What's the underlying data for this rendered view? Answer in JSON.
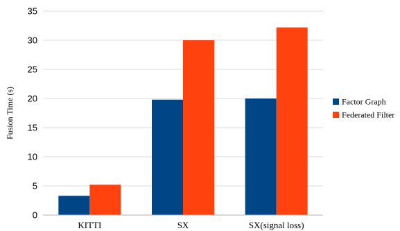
{
  "chart_data": {
    "type": "bar",
    "categories": [
      "KITTI",
      "SX",
      "SX(signal loss)"
    ],
    "series": [
      {
        "name": "Factor Graph",
        "color": "#004586",
        "values": [
          3.3,
          19.8,
          20.0
        ]
      },
      {
        "name": "Federated Filter",
        "color": "#ff420e",
        "values": [
          5.2,
          30.0,
          32.2
        ]
      }
    ],
    "ylabel": "Fusion Time (s)",
    "ylim": [
      0,
      35
    ],
    "yticks": [
      0,
      5,
      10,
      15,
      20,
      25,
      30,
      35
    ],
    "grid": true,
    "legend": "right"
  }
}
